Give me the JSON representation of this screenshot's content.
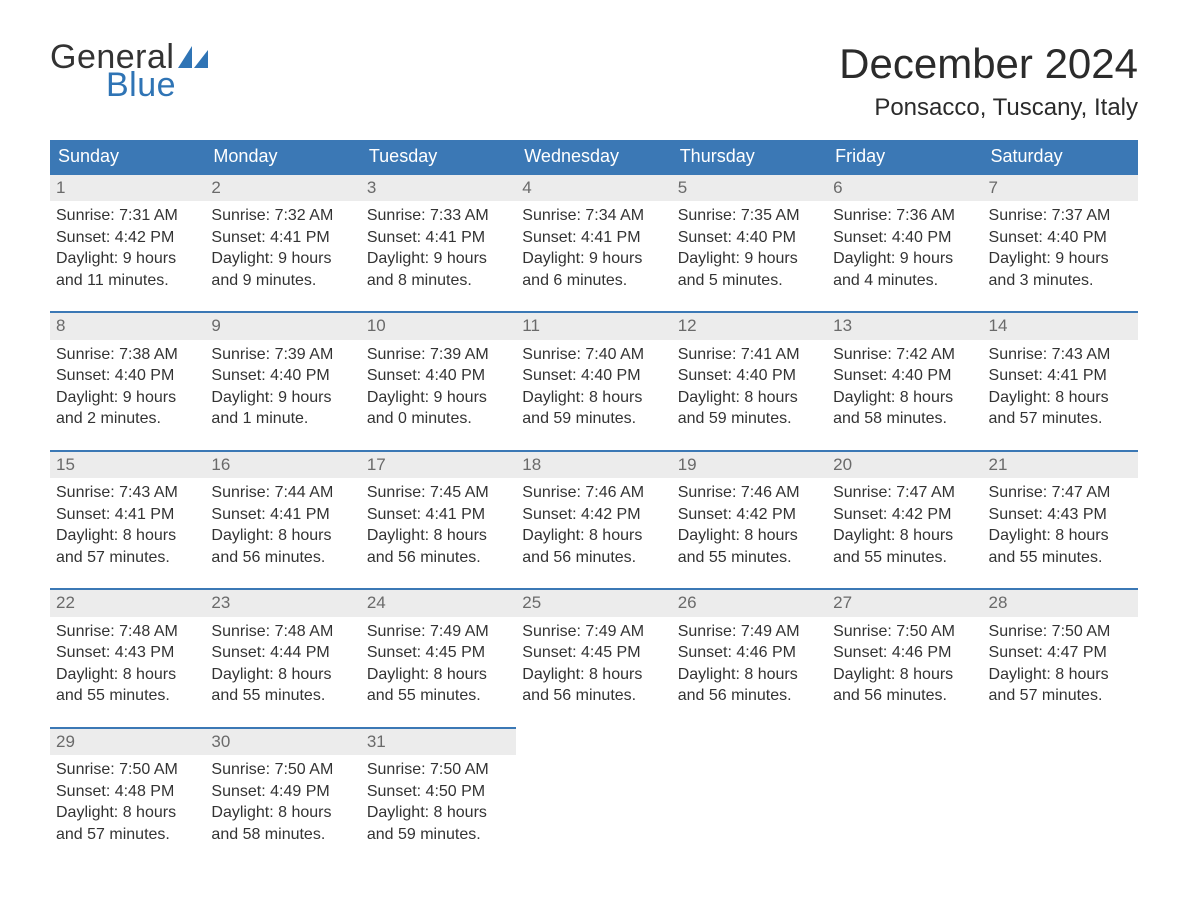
{
  "logo": {
    "line1": "General",
    "line2": "Blue",
    "accent_color": "#2f74b5"
  },
  "title": "December 2024",
  "location": "Ponsacco, Tuscany, Italy",
  "colors": {
    "header_bg": "#3b78b5",
    "header_text": "#ffffff",
    "daynum_bg": "#ececec",
    "daynum_text": "#6a6a6a",
    "row_border": "#3b78b5",
    "body_text": "#333333"
  },
  "day_headers": [
    "Sunday",
    "Monday",
    "Tuesday",
    "Wednesday",
    "Thursday",
    "Friday",
    "Saturday"
  ],
  "weeks": [
    [
      {
        "daynum": "1",
        "sunrise": "Sunrise: 7:31 AM",
        "sunset": "Sunset: 4:42 PM",
        "daylight1": "Daylight: 9 hours",
        "daylight2": "and 11 minutes."
      },
      {
        "daynum": "2",
        "sunrise": "Sunrise: 7:32 AM",
        "sunset": "Sunset: 4:41 PM",
        "daylight1": "Daylight: 9 hours",
        "daylight2": "and 9 minutes."
      },
      {
        "daynum": "3",
        "sunrise": "Sunrise: 7:33 AM",
        "sunset": "Sunset: 4:41 PM",
        "daylight1": "Daylight: 9 hours",
        "daylight2": "and 8 minutes."
      },
      {
        "daynum": "4",
        "sunrise": "Sunrise: 7:34 AM",
        "sunset": "Sunset: 4:41 PM",
        "daylight1": "Daylight: 9 hours",
        "daylight2": "and 6 minutes."
      },
      {
        "daynum": "5",
        "sunrise": "Sunrise: 7:35 AM",
        "sunset": "Sunset: 4:40 PM",
        "daylight1": "Daylight: 9 hours",
        "daylight2": "and 5 minutes."
      },
      {
        "daynum": "6",
        "sunrise": "Sunrise: 7:36 AM",
        "sunset": "Sunset: 4:40 PM",
        "daylight1": "Daylight: 9 hours",
        "daylight2": "and 4 minutes."
      },
      {
        "daynum": "7",
        "sunrise": "Sunrise: 7:37 AM",
        "sunset": "Sunset: 4:40 PM",
        "daylight1": "Daylight: 9 hours",
        "daylight2": "and 3 minutes."
      }
    ],
    [
      {
        "daynum": "8",
        "sunrise": "Sunrise: 7:38 AM",
        "sunset": "Sunset: 4:40 PM",
        "daylight1": "Daylight: 9 hours",
        "daylight2": "and 2 minutes."
      },
      {
        "daynum": "9",
        "sunrise": "Sunrise: 7:39 AM",
        "sunset": "Sunset: 4:40 PM",
        "daylight1": "Daylight: 9 hours",
        "daylight2": "and 1 minute."
      },
      {
        "daynum": "10",
        "sunrise": "Sunrise: 7:39 AM",
        "sunset": "Sunset: 4:40 PM",
        "daylight1": "Daylight: 9 hours",
        "daylight2": "and 0 minutes."
      },
      {
        "daynum": "11",
        "sunrise": "Sunrise: 7:40 AM",
        "sunset": "Sunset: 4:40 PM",
        "daylight1": "Daylight: 8 hours",
        "daylight2": "and 59 minutes."
      },
      {
        "daynum": "12",
        "sunrise": "Sunrise: 7:41 AM",
        "sunset": "Sunset: 4:40 PM",
        "daylight1": "Daylight: 8 hours",
        "daylight2": "and 59 minutes."
      },
      {
        "daynum": "13",
        "sunrise": "Sunrise: 7:42 AM",
        "sunset": "Sunset: 4:40 PM",
        "daylight1": "Daylight: 8 hours",
        "daylight2": "and 58 minutes."
      },
      {
        "daynum": "14",
        "sunrise": "Sunrise: 7:43 AM",
        "sunset": "Sunset: 4:41 PM",
        "daylight1": "Daylight: 8 hours",
        "daylight2": "and 57 minutes."
      }
    ],
    [
      {
        "daynum": "15",
        "sunrise": "Sunrise: 7:43 AM",
        "sunset": "Sunset: 4:41 PM",
        "daylight1": "Daylight: 8 hours",
        "daylight2": "and 57 minutes."
      },
      {
        "daynum": "16",
        "sunrise": "Sunrise: 7:44 AM",
        "sunset": "Sunset: 4:41 PM",
        "daylight1": "Daylight: 8 hours",
        "daylight2": "and 56 minutes."
      },
      {
        "daynum": "17",
        "sunrise": "Sunrise: 7:45 AM",
        "sunset": "Sunset: 4:41 PM",
        "daylight1": "Daylight: 8 hours",
        "daylight2": "and 56 minutes."
      },
      {
        "daynum": "18",
        "sunrise": "Sunrise: 7:46 AM",
        "sunset": "Sunset: 4:42 PM",
        "daylight1": "Daylight: 8 hours",
        "daylight2": "and 56 minutes."
      },
      {
        "daynum": "19",
        "sunrise": "Sunrise: 7:46 AM",
        "sunset": "Sunset: 4:42 PM",
        "daylight1": "Daylight: 8 hours",
        "daylight2": "and 55 minutes."
      },
      {
        "daynum": "20",
        "sunrise": "Sunrise: 7:47 AM",
        "sunset": "Sunset: 4:42 PM",
        "daylight1": "Daylight: 8 hours",
        "daylight2": "and 55 minutes."
      },
      {
        "daynum": "21",
        "sunrise": "Sunrise: 7:47 AM",
        "sunset": "Sunset: 4:43 PM",
        "daylight1": "Daylight: 8 hours",
        "daylight2": "and 55 minutes."
      }
    ],
    [
      {
        "daynum": "22",
        "sunrise": "Sunrise: 7:48 AM",
        "sunset": "Sunset: 4:43 PM",
        "daylight1": "Daylight: 8 hours",
        "daylight2": "and 55 minutes."
      },
      {
        "daynum": "23",
        "sunrise": "Sunrise: 7:48 AM",
        "sunset": "Sunset: 4:44 PM",
        "daylight1": "Daylight: 8 hours",
        "daylight2": "and 55 minutes."
      },
      {
        "daynum": "24",
        "sunrise": "Sunrise: 7:49 AM",
        "sunset": "Sunset: 4:45 PM",
        "daylight1": "Daylight: 8 hours",
        "daylight2": "and 55 minutes."
      },
      {
        "daynum": "25",
        "sunrise": "Sunrise: 7:49 AM",
        "sunset": "Sunset: 4:45 PM",
        "daylight1": "Daylight: 8 hours",
        "daylight2": "and 56 minutes."
      },
      {
        "daynum": "26",
        "sunrise": "Sunrise: 7:49 AM",
        "sunset": "Sunset: 4:46 PM",
        "daylight1": "Daylight: 8 hours",
        "daylight2": "and 56 minutes."
      },
      {
        "daynum": "27",
        "sunrise": "Sunrise: 7:50 AM",
        "sunset": "Sunset: 4:46 PM",
        "daylight1": "Daylight: 8 hours",
        "daylight2": "and 56 minutes."
      },
      {
        "daynum": "28",
        "sunrise": "Sunrise: 7:50 AM",
        "sunset": "Sunset: 4:47 PM",
        "daylight1": "Daylight: 8 hours",
        "daylight2": "and 57 minutes."
      }
    ],
    [
      {
        "daynum": "29",
        "sunrise": "Sunrise: 7:50 AM",
        "sunset": "Sunset: 4:48 PM",
        "daylight1": "Daylight: 8 hours",
        "daylight2": "and 57 minutes."
      },
      {
        "daynum": "30",
        "sunrise": "Sunrise: 7:50 AM",
        "sunset": "Sunset: 4:49 PM",
        "daylight1": "Daylight: 8 hours",
        "daylight2": "and 58 minutes."
      },
      {
        "daynum": "31",
        "sunrise": "Sunrise: 7:50 AM",
        "sunset": "Sunset: 4:50 PM",
        "daylight1": "Daylight: 8 hours",
        "daylight2": "and 59 minutes."
      },
      null,
      null,
      null,
      null
    ]
  ]
}
